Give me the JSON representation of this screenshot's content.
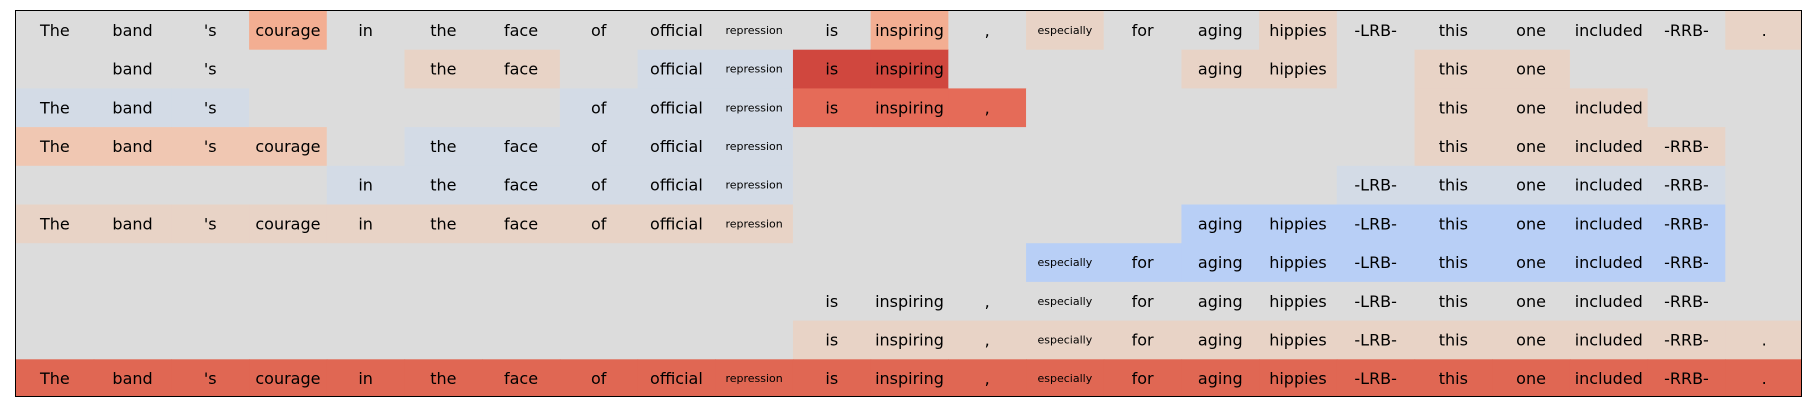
{
  "chart_data": {
    "type": "heatmap",
    "title": "",
    "xlabel": "",
    "ylabel": "",
    "grid": false,
    "legend": "none",
    "colors": {
      "background": "#dcdcdc",
      "level_map": {
        "-3": "#b8cff6",
        "-2": "#ccd8ea",
        "-1": "#d3dbe6",
        "1": "#e8d3c6",
        "2": "#f0c7b2",
        "3": "#f3ae92",
        "4": "#e56b58",
        "5": "#e06753",
        "6": "#d0473e"
      }
    },
    "tokens": [
      "The",
      "band",
      "'s",
      "courage",
      "in",
      "the",
      "face",
      "of",
      "official",
      "repression",
      "is",
      "inspiring",
      ",",
      "especially",
      "for",
      "aging",
      "hippies",
      "-LRB-",
      "this",
      "one",
      "included",
      "-RRB-",
      "."
    ],
    "small_tokens": [
      "repression",
      "especially"
    ],
    "rows": [
      {
        "shown": [
          0,
          1,
          2,
          3,
          4,
          5,
          6,
          7,
          8,
          9,
          10,
          11,
          12,
          13,
          14,
          15,
          16,
          17,
          18,
          19,
          20,
          21,
          22
        ],
        "levels": [
          0,
          0,
          0,
          3,
          0,
          0,
          0,
          0,
          0,
          0,
          0,
          3,
          0,
          1,
          0,
          0,
          1,
          0,
          0,
          0,
          0,
          0,
          1
        ]
      },
      {
        "shown": [
          1,
          2,
          5,
          6,
          8,
          9,
          10,
          11,
          15,
          16,
          18,
          19
        ],
        "levels": [
          0,
          0,
          0,
          0,
          0,
          1,
          1,
          0,
          -1,
          -1,
          6,
          6,
          0,
          0,
          0,
          1,
          1,
          0,
          1,
          1,
          0,
          0,
          0
        ]
      },
      {
        "shown": [
          0,
          1,
          2,
          7,
          8,
          9,
          10,
          11,
          12,
          18,
          19,
          20
        ],
        "levels": [
          -1,
          -1,
          -1,
          0,
          0,
          0,
          0,
          -1,
          -1,
          -1,
          4,
          4,
          4,
          0,
          0,
          0,
          0,
          0,
          1,
          1,
          1,
          0,
          0
        ]
      },
      {
        "shown": [
          0,
          1,
          2,
          3,
          5,
          6,
          7,
          8,
          9,
          18,
          19,
          20,
          21
        ],
        "levels": [
          2,
          2,
          2,
          2,
          0,
          -1,
          -1,
          -1,
          -1,
          -1,
          0,
          0,
          0,
          0,
          0,
          0,
          0,
          0,
          1,
          1,
          1,
          1,
          0
        ]
      },
      {
        "shown": [
          4,
          5,
          6,
          7,
          8,
          9,
          17,
          18,
          19,
          20,
          21
        ],
        "levels": [
          0,
          0,
          0,
          0,
          -1,
          -1,
          -1,
          -1,
          -1,
          -1,
          0,
          0,
          0,
          0,
          0,
          0,
          0,
          -1,
          -1,
          -1,
          -1,
          -1,
          0
        ]
      },
      {
        "shown": [
          0,
          1,
          2,
          3,
          4,
          5,
          6,
          7,
          8,
          9,
          15,
          16,
          17,
          18,
          19,
          20,
          21
        ],
        "levels": [
          1,
          1,
          1,
          1,
          1,
          1,
          1,
          1,
          1,
          1,
          0,
          0,
          0,
          0,
          0,
          -3,
          -3,
          -3,
          -3,
          -3,
          -3,
          -3,
          0
        ]
      },
      {
        "shown": [
          13,
          14,
          15,
          16,
          17,
          18,
          19,
          20,
          21
        ],
        "levels": [
          0,
          0,
          0,
          0,
          0,
          0,
          0,
          0,
          0,
          0,
          0,
          0,
          0,
          -3,
          -3,
          -3,
          -3,
          -3,
          -3,
          -3,
          -3,
          -3,
          0
        ]
      },
      {
        "shown": [
          10,
          11,
          12,
          13,
          14,
          15,
          16,
          17,
          18,
          19,
          20,
          21
        ],
        "levels": [
          0,
          0,
          0,
          0,
          0,
          0,
          0,
          0,
          0,
          0,
          0,
          0,
          0,
          0,
          0,
          0,
          0,
          0,
          0,
          0,
          0,
          0,
          0
        ]
      },
      {
        "shown": [
          10,
          11,
          12,
          13,
          14,
          15,
          16,
          17,
          18,
          19,
          20,
          21,
          22
        ],
        "levels": [
          0,
          0,
          0,
          0,
          0,
          0,
          0,
          0,
          0,
          0,
          1,
          1,
          1,
          1,
          1,
          1,
          1,
          1,
          1,
          1,
          1,
          1,
          1
        ]
      },
      {
        "shown": [
          0,
          1,
          2,
          3,
          4,
          5,
          6,
          7,
          8,
          9,
          10,
          11,
          12,
          13,
          14,
          15,
          16,
          17,
          18,
          19,
          20,
          21,
          22
        ],
        "levels": [
          5,
          5,
          5,
          5,
          5,
          5,
          5,
          5,
          5,
          5,
          5,
          5,
          5,
          5,
          5,
          5,
          5,
          5,
          5,
          5,
          5,
          5,
          5
        ]
      }
    ]
  }
}
